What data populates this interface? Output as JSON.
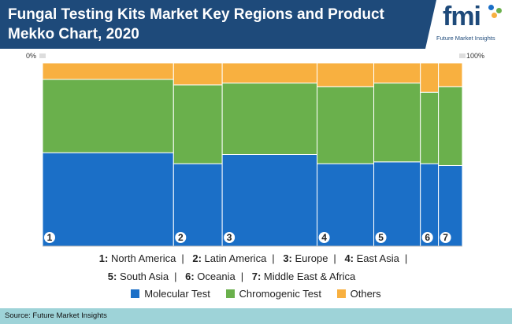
{
  "title": "Fungal Testing Kits Market Key Regions and Product Mekko Chart, 2020",
  "logo": {
    "text": "fmi",
    "subtitle": "Future Market Insights"
  },
  "source": "Source: Future Market Insights",
  "colors": {
    "header": "#1e4a7a",
    "molecular": "#1b6fc7",
    "chromogenic": "#6ab04c",
    "others": "#f8b040",
    "source_bar": "#9ed3d8"
  },
  "region_legend": {
    "row1": [
      {
        "num": "1:",
        "name": "North America"
      },
      {
        "num": "2:",
        "name": "Latin America"
      },
      {
        "num": "3:",
        "name": "Europe"
      },
      {
        "num": "4:",
        "name": "East Asia"
      }
    ],
    "row2": [
      {
        "num": "5:",
        "name": "South Asia"
      },
      {
        "num": "6:",
        "name": "Oceania"
      },
      {
        "num": "7:",
        "name": "Middle East & Africa"
      }
    ]
  },
  "chart_data": {
    "type": "bar",
    "subtype": "mekko",
    "x_tick_labels": [
      "0%",
      "100%"
    ],
    "categories": [
      "1",
      "2",
      "3",
      "4",
      "5",
      "6",
      "7"
    ],
    "region_names": [
      "North America",
      "Latin America",
      "Europe",
      "East Asia",
      "South Asia",
      "Oceania",
      "Middle East & Africa"
    ],
    "widths_pct": [
      31.2,
      11.6,
      22.6,
      13.5,
      11.1,
      4.3,
      5.7
    ],
    "series": [
      {
        "name": "Molecular Test",
        "color": "#1b6fc7",
        "values": [
          51,
          45,
          50,
          45,
          46,
          45,
          44
        ]
      },
      {
        "name": "Chromogenic Test",
        "color": "#6ab04c",
        "values": [
          40,
          43,
          39,
          42,
          43,
          39,
          43
        ]
      },
      {
        "name": "Others",
        "color": "#f8b040",
        "values": [
          9,
          12,
          11,
          13,
          11,
          16,
          13
        ]
      }
    ],
    "ylim": [
      0,
      100
    ],
    "stacked_percent": true,
    "grid": false,
    "legend_position": "bottom"
  }
}
